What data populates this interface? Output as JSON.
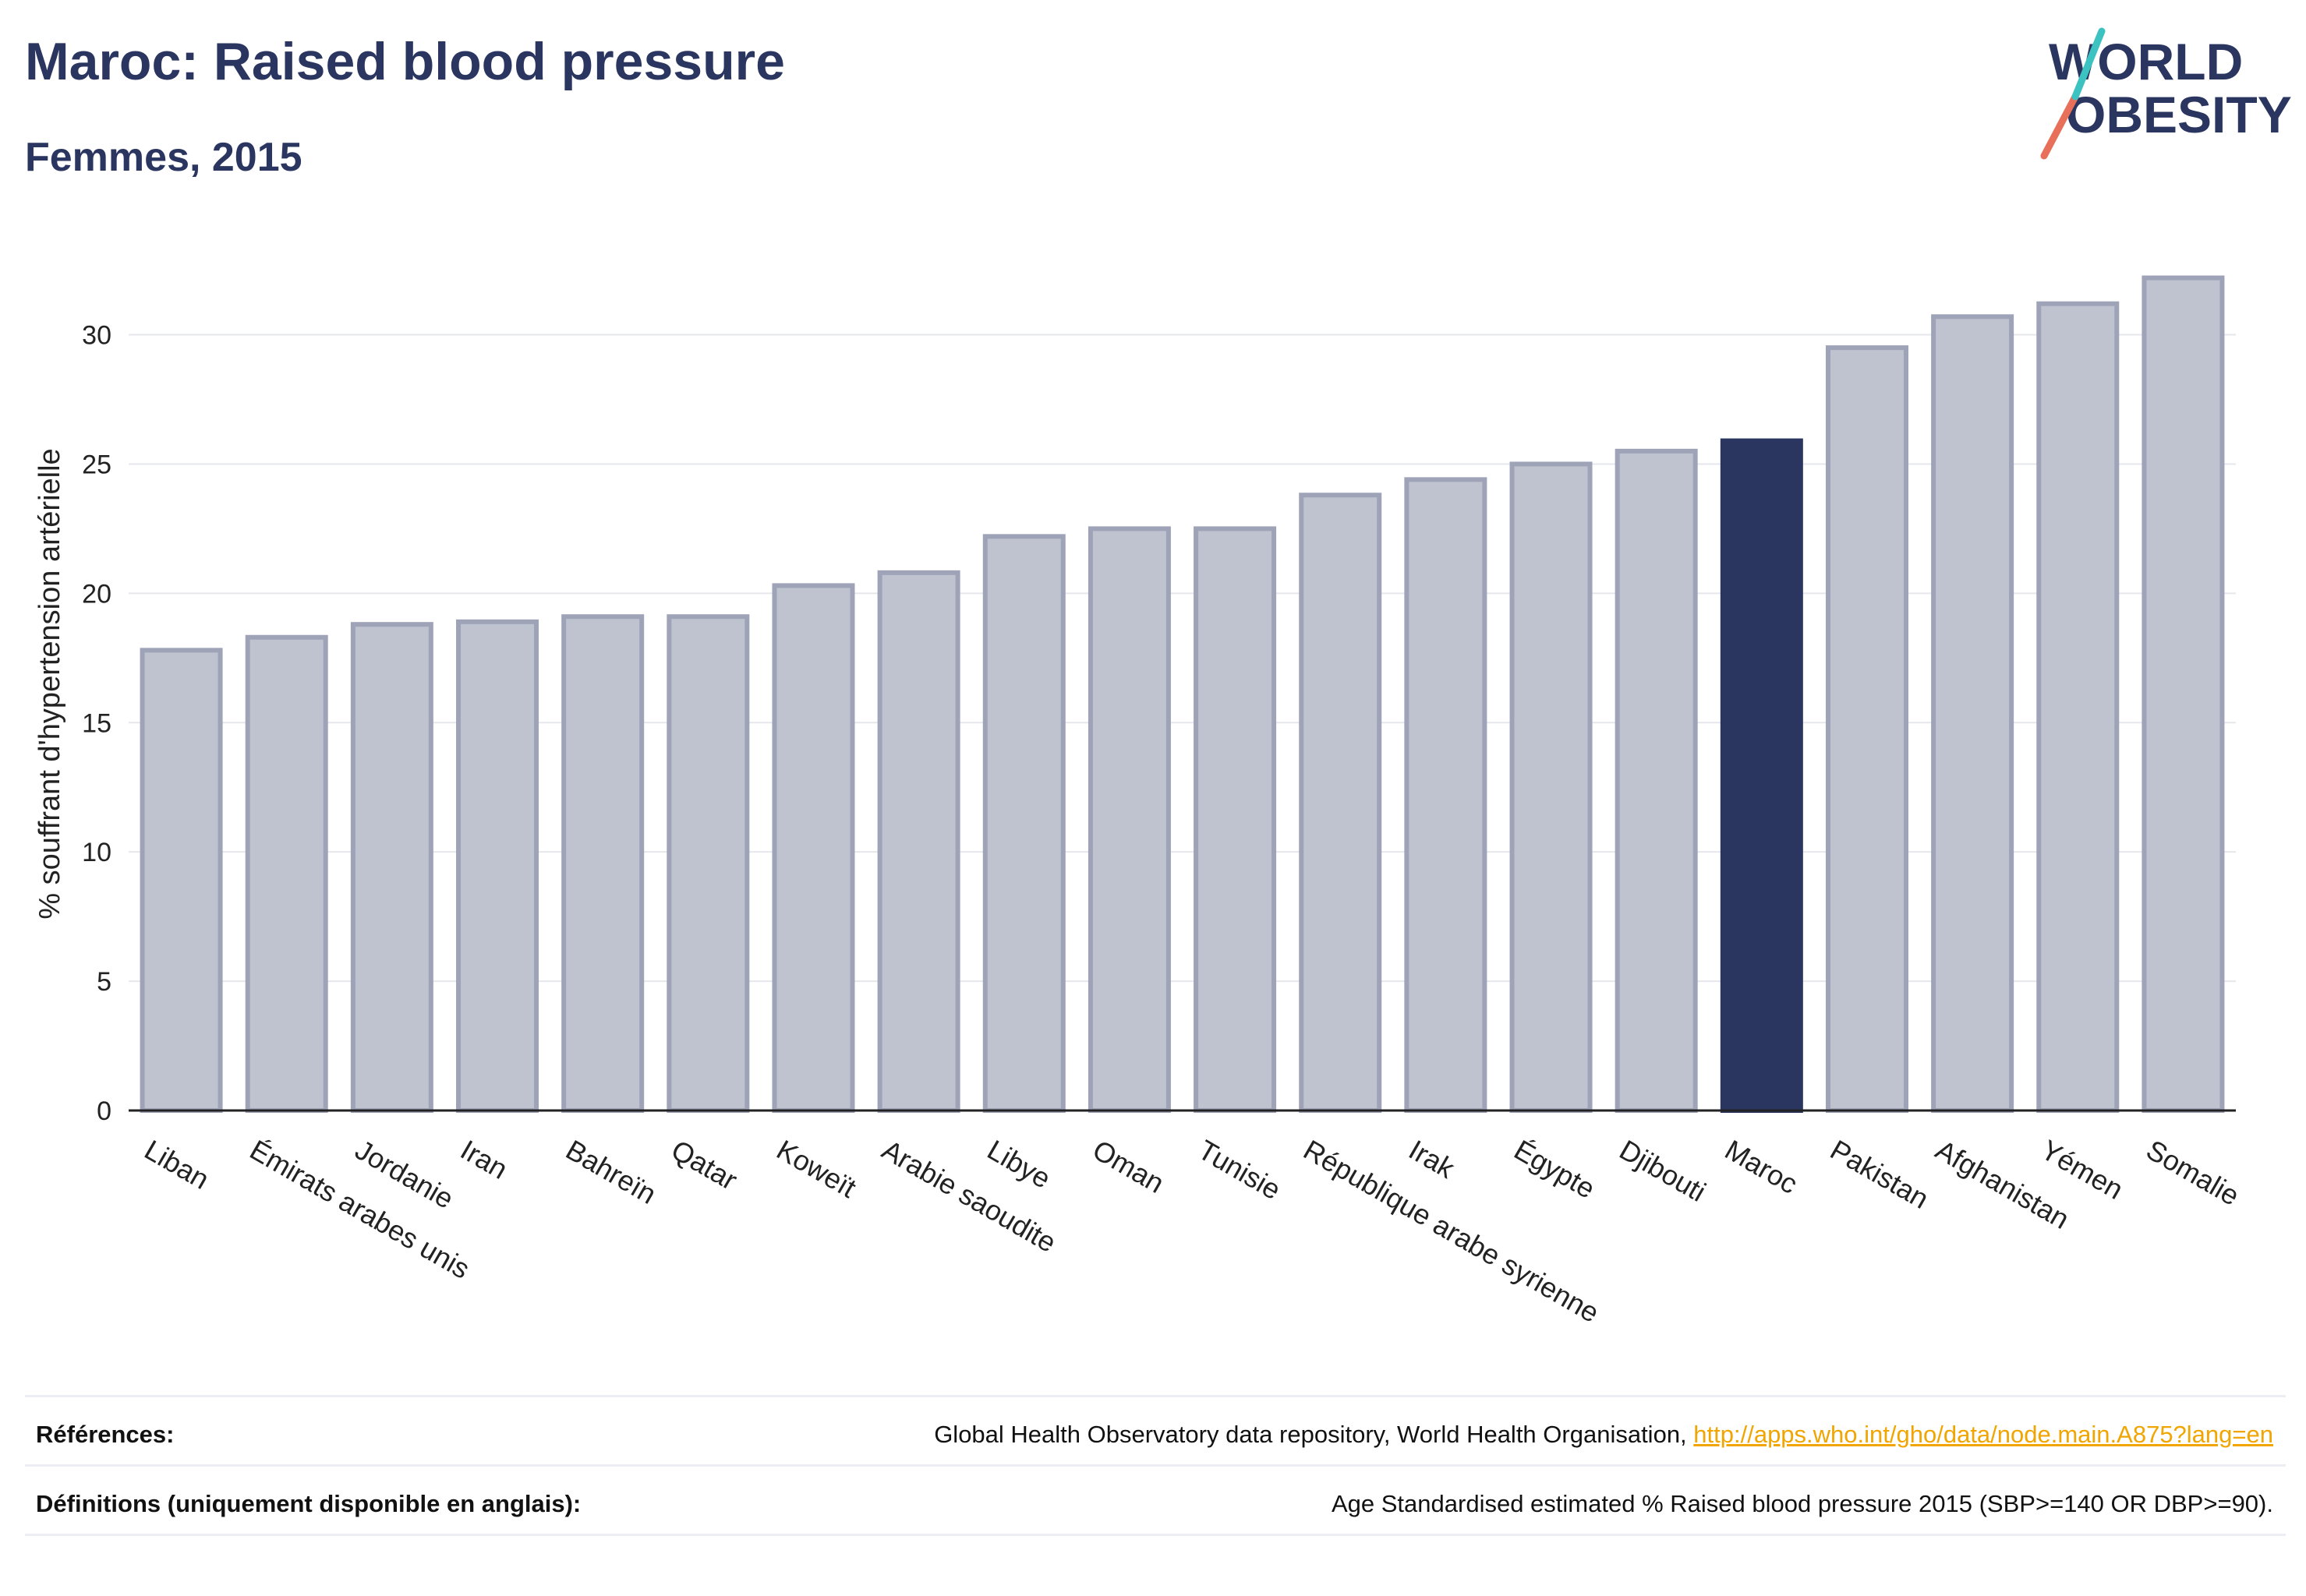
{
  "header": {
    "title": "Maroc: Raised blood pressure",
    "subtitle": "Femmes, 2015"
  },
  "logo": {
    "line1": "WORLD",
    "line2": "OBESITY"
  },
  "chart_data": {
    "type": "bar",
    "ylabel": "% souffrant d'hypertension artérielle",
    "xlabel": "",
    "ylim": [
      0,
      33
    ],
    "yticks": [
      0,
      5,
      10,
      15,
      20,
      25,
      30
    ],
    "grid": true,
    "categories": [
      "Liban",
      "Émirats arabes unis",
      "Jordanie",
      "Iran",
      "Bahreïn",
      "Qatar",
      "Koweït",
      "Arabie saoudite",
      "Libye",
      "Oman",
      "Tunisie",
      "République arabe syrienne",
      "Irak",
      "Égypte",
      "Djibouti",
      "Maroc",
      "Pakistan",
      "Afghanistan",
      "Yémen",
      "Somalie"
    ],
    "values": [
      17.8,
      18.3,
      18.8,
      18.9,
      19.1,
      19.1,
      20.3,
      20.8,
      22.2,
      22.5,
      22.5,
      23.8,
      24.4,
      25.0,
      25.5,
      25.9,
      29.5,
      30.7,
      31.2,
      32.2
    ],
    "highlight": "Maroc",
    "colors": {
      "bar": "#bfc2cf",
      "bar_border": "#9ea3b8",
      "highlight": "#2a3560",
      "axis": "#222222",
      "grid": "#e6e7ec"
    }
  },
  "references": {
    "label": "Références:",
    "text": "Global Health Observatory data repository, World Health Organisation, ",
    "link": "http://apps.who.int/gho/data/node.main.A875?lang=en"
  },
  "definitions": {
    "label": "Définitions (uniquement disponible en anglais):",
    "text": "Age Standardised estimated % Raised blood pressure 2015 (SBP>=140 OR DBP>=90)."
  }
}
